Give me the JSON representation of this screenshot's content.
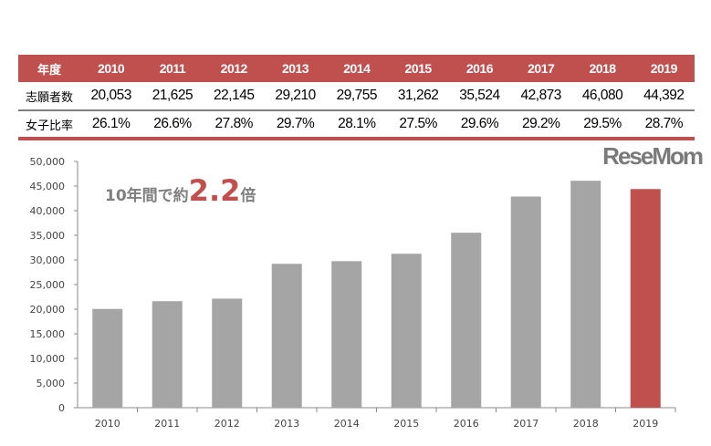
{
  "table": {
    "header_label": "年度",
    "years": [
      "2010",
      "2011",
      "2012",
      "2013",
      "2014",
      "2015",
      "2016",
      "2017",
      "2018",
      "2019"
    ],
    "applicants_label": "志願者数",
    "applicants": [
      "20,053",
      "21,625",
      "22,145",
      "29,210",
      "29,755",
      "31,262",
      "35,524",
      "42,873",
      "46,080",
      "44,392"
    ],
    "female_ratio_label": "女子比率",
    "female_ratio": [
      "26.1%",
      "26.6%",
      "27.8%",
      "29.7%",
      "28.1%",
      "27.5%",
      "29.6%",
      "29.2%",
      "29.5%",
      "28.7%"
    ]
  },
  "annotation": {
    "prefix": "10年間で約",
    "value": "2.2",
    "suffix": "倍"
  },
  "logo": "ReseMom",
  "chart_data": {
    "type": "bar",
    "categories": [
      "2010",
      "2011",
      "2012",
      "2013",
      "2014",
      "2015",
      "2016",
      "2017",
      "2018",
      "2019"
    ],
    "values": [
      20053,
      21625,
      22145,
      29210,
      29755,
      31262,
      35524,
      42873,
      46080,
      44392
    ],
    "ylim": [
      0,
      50000
    ],
    "yticks": [
      "0",
      "5,000",
      "10,000",
      "15,000",
      "20,000",
      "25,000",
      "30,000",
      "35,000",
      "40,000",
      "45,000",
      "50,000"
    ],
    "colors": {
      "default": "#a5a5a5",
      "highlight": "#c0504d"
    },
    "highlight_index": 9,
    "grid": false
  }
}
